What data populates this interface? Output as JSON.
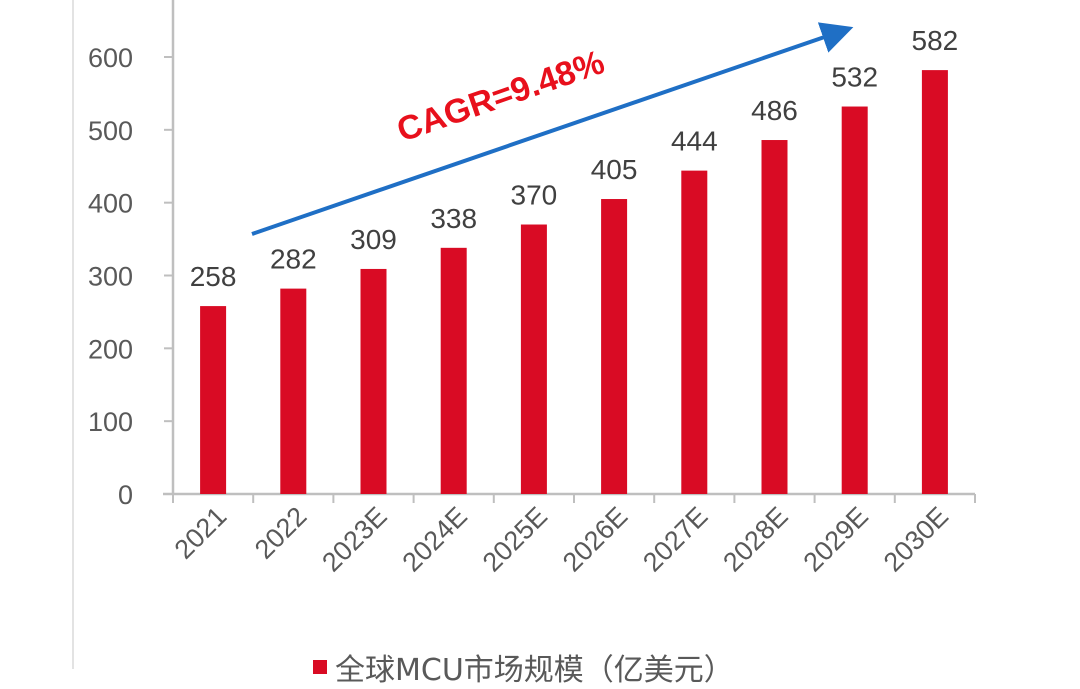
{
  "chart_data": {
    "type": "bar",
    "title": "",
    "xlabel": "",
    "ylabel": "",
    "categories": [
      "2021",
      "2022",
      "2023E",
      "2024E",
      "2025E",
      "2026E",
      "2027E",
      "2028E",
      "2029E",
      "2030E"
    ],
    "series": [
      {
        "name": "全球MCU市场规模（亿美元）",
        "values": [
          258,
          282,
          309,
          338,
          370,
          405,
          444,
          486,
          532,
          582
        ],
        "color": "#d90b24"
      }
    ],
    "ylim": [
      0,
      600
    ],
    "yticks": [
      0,
      100,
      200,
      300,
      400,
      500,
      600
    ],
    "grid": false,
    "data_labels": true,
    "legend_position": "bottom",
    "annotations": [
      {
        "type": "arrow",
        "color": "#1f6fc5",
        "from_category": "2022",
        "to_category": "2029E"
      },
      {
        "type": "text",
        "text": "CAGR=9.48%",
        "color": "#e8101c"
      }
    ]
  },
  "annotation": {
    "cagr_text": "CAGR=9.48%"
  },
  "legend": {
    "label": "全球MCU市场规模（亿美元）",
    "color": "#d90b24"
  },
  "colors": {
    "bar": "#d90b24",
    "arrow": "#1f6fc5",
    "cagr_text": "#e8101c",
    "axis": "#bfbfbf",
    "tick_text": "#595959",
    "label_text": "#404040"
  }
}
